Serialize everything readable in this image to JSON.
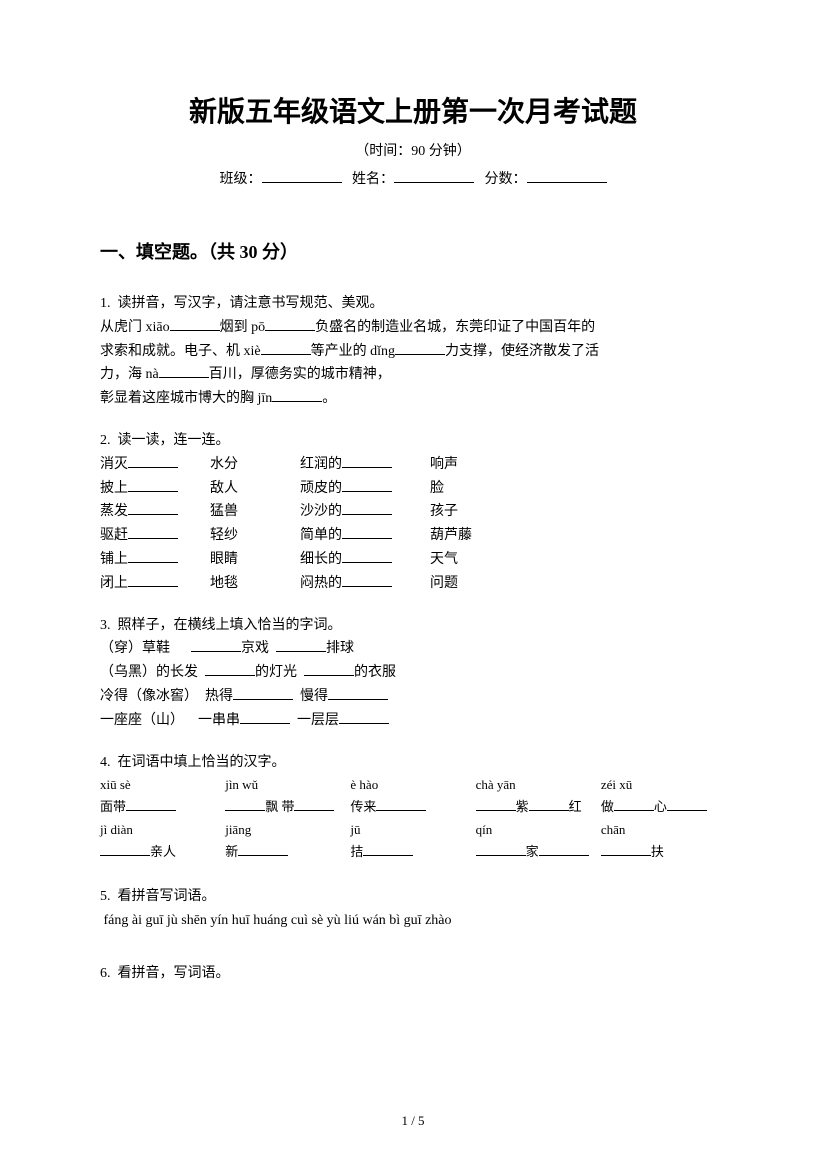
{
  "title": "新版五年级语文上册第一次月考试题",
  "subtitle": "（时间：90 分钟）",
  "info": {
    "class_label": "班级：",
    "name_label": "姓名：",
    "score_label": "分数："
  },
  "section1": {
    "header": "一、填空题。（共 30 分）"
  },
  "q1": {
    "num": "1.",
    "prompt": "读拼音，写汉字，请注意书写规范、美观。",
    "l1a": "从虎门 xiāo",
    "l1b": "烟到 pō",
    "l1c": "负盛名的制造业名城，东莞印证了中国百年的",
    "l2a": "求索和成就。电子、机 xiè",
    "l2b": "等产业的 dǐng",
    "l2c": "力支撑，使经济散发了活",
    "l3a": "力，海 nà",
    "l3b": "百川，厚德务实的城市精神，",
    "l4a": "彰显着这座城市博大的胸 jīn",
    "l4b": "。"
  },
  "q2": {
    "num": "2.",
    "prompt": "读一读，连一连。",
    "rows": [
      {
        "a": "消灭",
        "b": "水分",
        "c": "红润的",
        "d": "响声"
      },
      {
        "a": "披上",
        "b": "敌人",
        "c": "顽皮的",
        "d": "脸"
      },
      {
        "a": "蒸发",
        "b": "猛兽",
        "c": "沙沙的",
        "d": "孩子"
      },
      {
        "a": "驱赶",
        "b": "轻纱",
        "c": "简单的",
        "d": "葫芦藤"
      },
      {
        "a": "铺上",
        "b": "眼睛",
        "c": "细长的",
        "d": "天气"
      },
      {
        "a": "闭上",
        "b": "地毯",
        "c": "闷热的",
        "d": "问题"
      }
    ]
  },
  "q3": {
    "num": "3.",
    "prompt": "照样子，在横线上填入恰当的字词。",
    "l1a": "（穿）草鞋",
    "l1b": "京戏",
    "l1c": "排球",
    "l2a": "（乌黑）的长发",
    "l2b": "的灯光",
    "l2c": "的衣服",
    "l3a": "冷得（像冰窖）",
    "l3b": "热得",
    "l3c": "慢得",
    "l4a": "一座座（山）",
    "l4b": "一串串",
    "l4c": "一层层"
  },
  "q4": {
    "num": "4.",
    "prompt": "在词语中填上恰当的汉字。",
    "r1": {
      "c1": "xiū  sè",
      "c2": "jìn    wǔ",
      "c3": "è  hào",
      "c4": "chà  yān",
      "c5": "zéi  xū"
    },
    "r2": {
      "c1": "面带",
      "c2pre": "",
      "c2mid": "飘 带",
      "c3": "传来",
      "c4a": "",
      "c4b": "紫",
      "c4c": "红",
      "c5a": "做",
      "c5b": "心"
    },
    "r3": {
      "c1": "jì  diàn",
      "c2": "jiāng",
      "c3": "jū",
      "c4": "qín",
      "c5": "chān"
    },
    "r4": {
      "c1": "亲人",
      "c2": "新",
      "c3": "拮",
      "c4": "家",
      "c5": "扶"
    }
  },
  "q5": {
    "num": "5.",
    "prompt": "看拼音写词语。",
    "items": "fáng ài    guī jù    shēn yín    huī huáng      cuì sè yù liú      wán bì guī zhào"
  },
  "q6": {
    "num": "6.",
    "prompt": "看拼音，写词语。"
  },
  "page": "1 / 5"
}
